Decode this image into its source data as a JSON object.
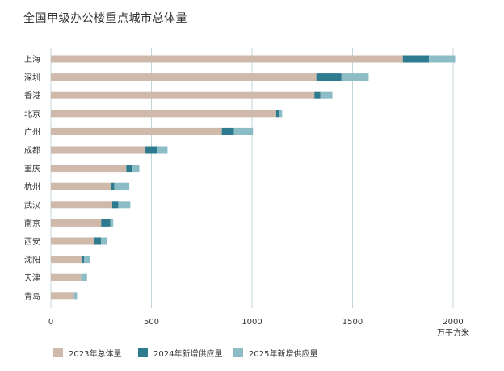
{
  "chart_data": {
    "type": "bar",
    "orientation": "horizontal",
    "stacked": true,
    "title": "全国甲级办公楼重点城市总体量",
    "unit_label": "万平方米",
    "categories": [
      "上海",
      "深圳",
      "香港",
      "北京",
      "广州",
      "成都",
      "重庆",
      "杭州",
      "武汉",
      "南京",
      "西安",
      "沈阳",
      "天津",
      "青岛"
    ],
    "series": [
      {
        "name": "2023年总体量",
        "color": "#cfb9aa",
        "values": [
          1750,
          1320,
          1310,
          1120,
          850,
          470,
          375,
          300,
          305,
          250,
          215,
          155,
          150,
          115
        ]
      },
      {
        "name": "2024年新增供应量",
        "color": "#2e7a8e",
        "values": [
          130,
          125,
          30,
          15,
          60,
          60,
          30,
          15,
          30,
          45,
          35,
          10,
          0,
          0
        ]
      },
      {
        "name": "2025年新增供应量",
        "color": "#8cbdc7",
        "values": [
          130,
          135,
          60,
          15,
          95,
          50,
          35,
          75,
          60,
          15,
          30,
          30,
          30,
          15
        ]
      }
    ],
    "xlim": [
      0,
      2000
    ],
    "xticks": [
      "0",
      "500",
      "1000",
      "1500",
      "2000"
    ],
    "grid": true,
    "gridline_color": "#c3d4da",
    "legend_position": "bottom-left"
  }
}
